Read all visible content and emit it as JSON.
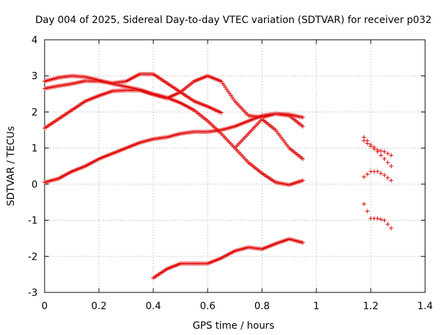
{
  "chart_data": {
    "type": "scatter",
    "title": "Day 004 of 2025, Sidereal Day-to-day VTEC variation (SDTVAR) for receiver p032",
    "xlabel": "GPS time / hours",
    "ylabel": "SDTVAR / TECUs",
    "xlim": [
      0,
      1.4
    ],
    "ylim": [
      -3,
      4
    ],
    "xticks": [
      "0",
      "0.2",
      "0.4",
      "0.6",
      "0.8",
      "1",
      "1.2",
      "1.4"
    ],
    "yticks": [
      "-3",
      "-2",
      "-1",
      "0",
      "1",
      "2",
      "3",
      "4"
    ],
    "xtick_values": [
      0,
      0.2,
      0.4,
      0.6,
      0.8,
      1.0,
      1.2,
      1.4
    ],
    "ytick_values": [
      -3,
      -2,
      -1,
      0,
      1,
      2,
      3,
      4
    ],
    "grid": true,
    "marker": "+",
    "color": "#e00000",
    "series": [
      {
        "name": "s1",
        "x": [
          0,
          0.05,
          0.1,
          0.15,
          0.2,
          0.25,
          0.3,
          0.35,
          0.4,
          0.45,
          0.5,
          0.55,
          0.6,
          0.65,
          0.7,
          0.75,
          0.8,
          0.85,
          0.9,
          0.95
        ],
        "y": [
          2.85,
          2.95,
          3.0,
          2.97,
          2.88,
          2.78,
          2.7,
          2.62,
          2.5,
          2.4,
          2.25,
          2.05,
          1.75,
          1.4,
          1.0,
          0.6,
          0.3,
          0.05,
          -0.02,
          0.1
        ]
      },
      {
        "name": "s2",
        "x": [
          0,
          0.05,
          0.1,
          0.15,
          0.2,
          0.25,
          0.3,
          0.35,
          0.4,
          0.45,
          0.5,
          0.55,
          0.6,
          0.65
        ],
        "y": [
          2.65,
          2.72,
          2.78,
          2.86,
          2.85,
          2.8,
          2.85,
          3.05,
          3.05,
          2.8,
          2.55,
          2.3,
          2.15,
          1.98
        ]
      },
      {
        "name": "s3",
        "x": [
          0,
          0.05,
          0.1,
          0.15,
          0.2,
          0.25,
          0.3,
          0.35,
          0.4,
          0.45,
          0.5,
          0.55,
          0.6,
          0.65,
          0.7,
          0.75,
          0.8,
          0.85,
          0.9,
          0.95
        ],
        "y": [
          1.55,
          1.8,
          2.05,
          2.3,
          2.45,
          2.58,
          2.6,
          2.6,
          2.48,
          2.38,
          2.55,
          2.85,
          3.0,
          2.85,
          2.3,
          1.9,
          1.85,
          1.95,
          1.93,
          1.85
        ]
      },
      {
        "name": "s4",
        "x": [
          0,
          0.05,
          0.1,
          0.15,
          0.2,
          0.25,
          0.3,
          0.35,
          0.4,
          0.45,
          0.5,
          0.55,
          0.6,
          0.65,
          0.7,
          0.75,
          0.8,
          0.85,
          0.9,
          0.95
        ],
        "y": [
          0.05,
          0.15,
          0.35,
          0.5,
          0.7,
          0.85,
          1.0,
          1.15,
          1.25,
          1.3,
          1.4,
          1.45,
          1.45,
          1.5,
          1.6,
          1.75,
          1.9,
          1.95,
          1.9,
          1.6
        ]
      },
      {
        "name": "s5",
        "x": [
          0.7,
          0.75,
          0.8,
          0.85,
          0.9,
          0.95
        ],
        "y": [
          1.0,
          1.4,
          1.8,
          1.5,
          1.0,
          0.7
        ]
      },
      {
        "name": "s6",
        "x": [
          0.4,
          0.45,
          0.5,
          0.55,
          0.6,
          0.65,
          0.7,
          0.75,
          0.8,
          0.85,
          0.9,
          0.95
        ],
        "y": [
          -2.6,
          -2.35,
          -2.2,
          -2.2,
          -2.2,
          -2.05,
          -1.85,
          -1.75,
          -1.8,
          -1.65,
          -1.52,
          -1.62
        ]
      },
      {
        "name": "s7",
        "x": [
          1.175,
          1.2,
          1.225,
          1.25,
          1.275
        ],
        "y": [
          1.3,
          1.1,
          0.95,
          0.9,
          0.8
        ]
      },
      {
        "name": "s8",
        "x": [
          1.175,
          1.2,
          1.225,
          1.25,
          1.275
        ],
        "y": [
          1.2,
          1.05,
          0.9,
          0.7,
          0.5
        ]
      },
      {
        "name": "s9",
        "x": [
          1.175,
          1.2,
          1.225,
          1.25,
          1.275
        ],
        "y": [
          0.2,
          0.35,
          0.35,
          0.25,
          0.1
        ]
      },
      {
        "name": "s10",
        "x": [
          1.175,
          1.2,
          1.225,
          1.25,
          1.275
        ],
        "y": [
          -0.55,
          -0.95,
          -0.95,
          -1.0,
          -1.22
        ]
      }
    ]
  }
}
